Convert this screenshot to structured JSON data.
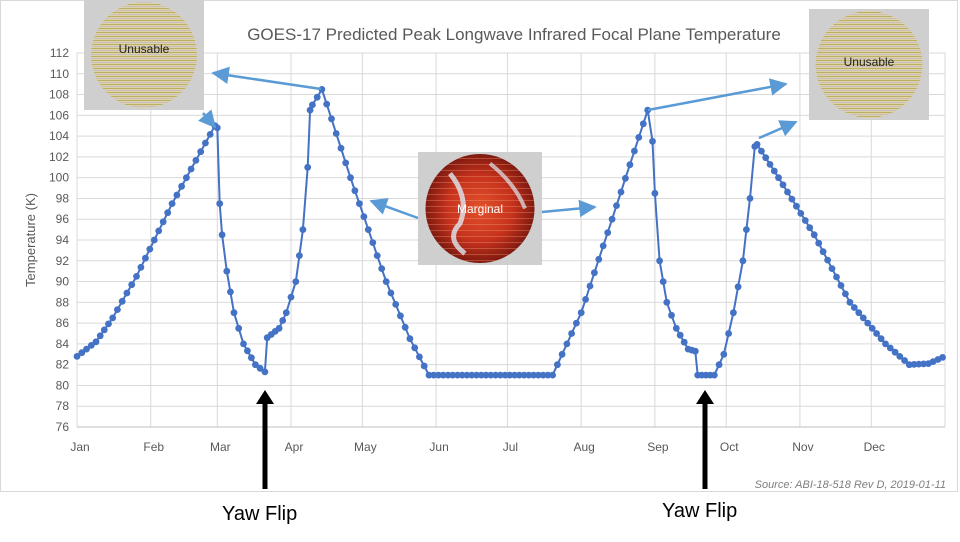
{
  "chart_data": {
    "type": "scatter",
    "title": "GOES-17 Predicted Peak Longwave Infrared Focal Plane Temperature",
    "ylabel": "Temperature (K)",
    "xlabel": "",
    "ylim": [
      76,
      112
    ],
    "yticks": [
      76,
      78,
      80,
      82,
      84,
      86,
      88,
      90,
      92,
      94,
      96,
      98,
      100,
      102,
      104,
      106,
      108,
      110,
      112
    ],
    "months": [
      "Jan",
      "Feb",
      "Mar",
      "Apr",
      "May",
      "Jun",
      "Jul",
      "Aug",
      "Sep",
      "Oct",
      "Nov",
      "Dec"
    ],
    "grid": true,
    "legend": "none",
    "series_color": "#4472C4",
    "series": [
      {
        "values_by_day": [
          [
            0,
            82.8
          ],
          [
            8,
            84.2
          ],
          [
            15,
            86.5
          ],
          [
            25,
            90.5
          ],
          [
            40,
            97.5
          ],
          [
            58,
            105
          ],
          [
            59,
            104.8
          ],
          [
            60,
            97.5
          ],
          [
            61,
            94.5
          ],
          [
            63,
            91
          ],
          [
            66,
            87
          ],
          [
            70,
            84
          ],
          [
            75,
            82
          ],
          [
            79,
            81.3
          ],
          [
            80,
            84.6
          ],
          [
            85,
            85.5
          ],
          [
            88,
            87
          ],
          [
            92,
            90
          ],
          [
            95,
            95
          ],
          [
            97,
            101
          ],
          [
            98,
            106.5
          ],
          [
            99,
            107
          ],
          [
            103,
            108.5
          ],
          [
            115,
            100
          ],
          [
            130,
            90
          ],
          [
            140,
            84.5
          ],
          [
            148,
            81
          ],
          [
            200,
            81
          ],
          [
            212,
            87
          ],
          [
            225,
            96
          ],
          [
            240,
            106.5
          ],
          [
            242,
            103.5
          ],
          [
            243,
            98.5
          ],
          [
            245,
            92
          ],
          [
            248,
            88
          ],
          [
            252,
            85.5
          ],
          [
            257,
            83.5
          ],
          [
            260,
            83.3
          ],
          [
            261,
            81
          ],
          [
            268,
            81
          ],
          [
            272,
            83
          ],
          [
            276,
            87
          ],
          [
            280,
            92
          ],
          [
            283,
            98
          ],
          [
            285,
            103
          ],
          [
            286,
            103.2
          ],
          [
            295,
            100
          ],
          [
            310,
            94.5
          ],
          [
            325,
            88
          ],
          [
            340,
            84
          ],
          [
            350,
            82
          ],
          [
            358,
            82.1
          ],
          [
            364,
            82.7
          ]
        ]
      }
    ],
    "images": [
      {
        "label": "Unusable",
        "kind": "unusable"
      },
      {
        "label": "Marginal",
        "kind": "marginal"
      },
      {
        "label": "Unusable",
        "kind": "unusable"
      }
    ],
    "annotations": [
      "Yaw Flip",
      "Yaw Flip"
    ],
    "source": "Source: ABI-18-518 Rev D, 2019-01-11"
  }
}
